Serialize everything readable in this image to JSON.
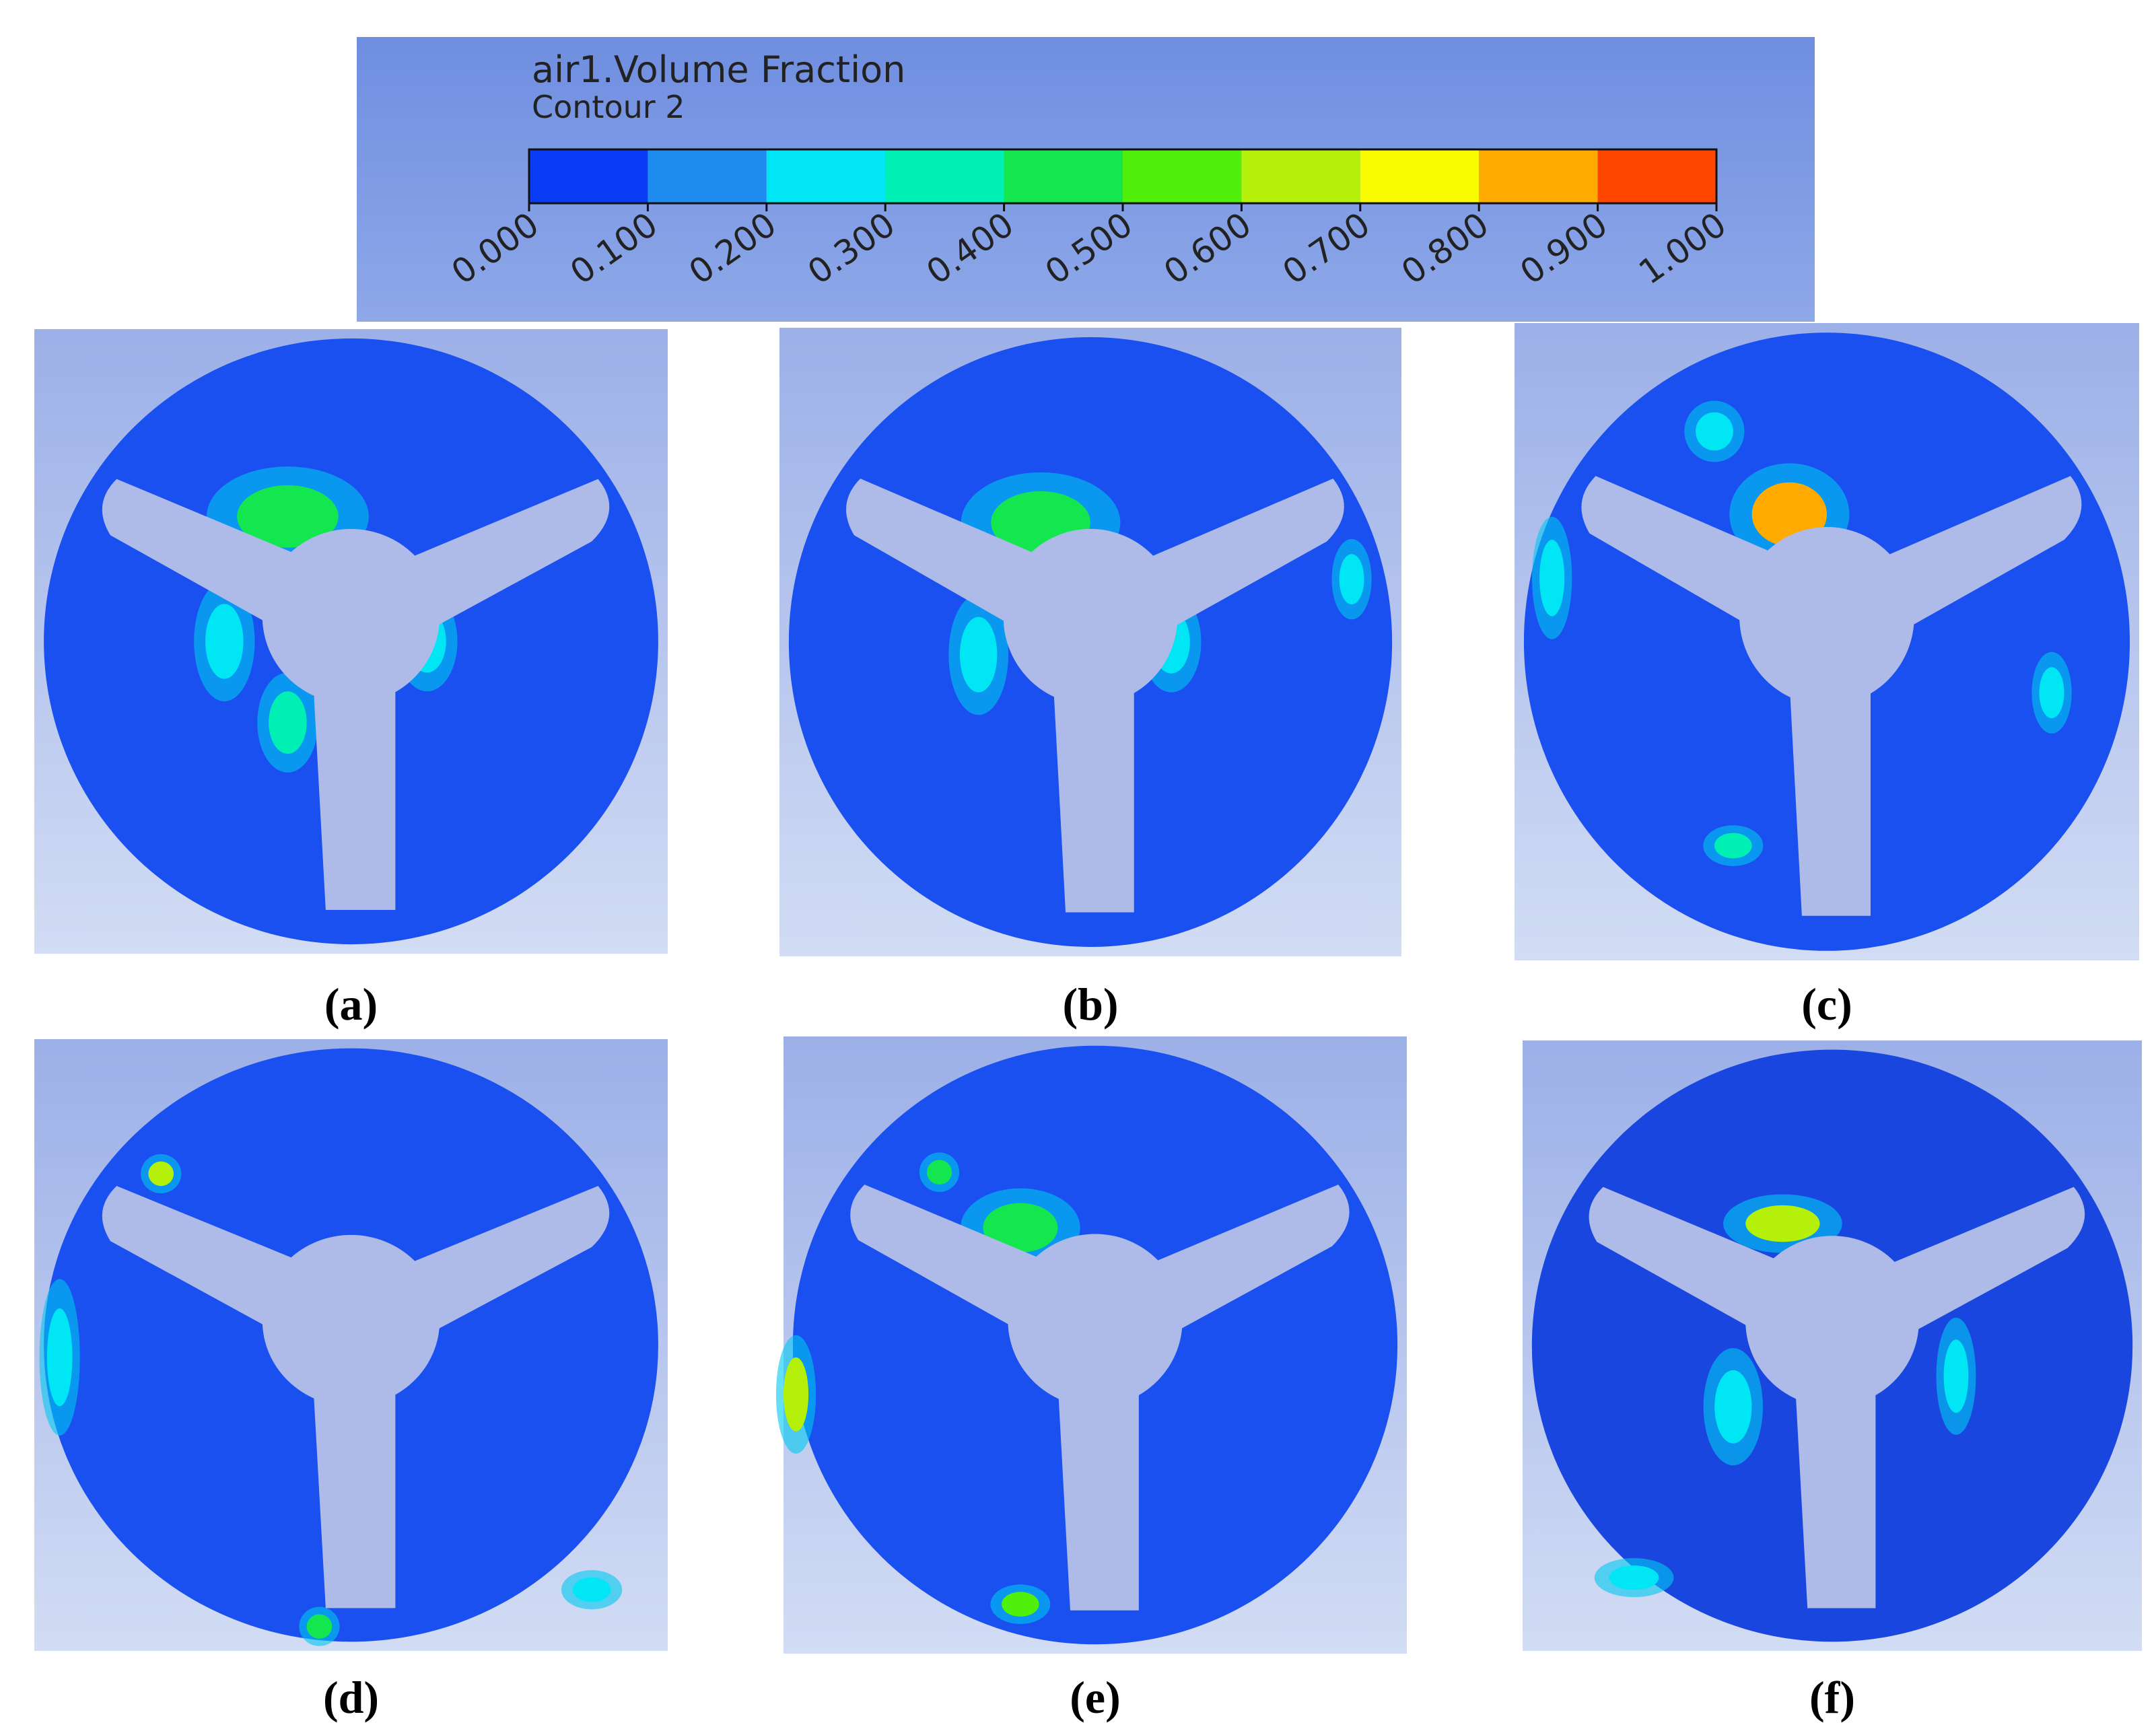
{
  "legend": {
    "title": "air1.Volume Fraction",
    "subtitle": "Contour 2",
    "colors": [
      "#0a3cf5",
      "#1e8cf0",
      "#00e6f5",
      "#00f0b4",
      "#14e650",
      "#50f00a",
      "#b4f00a",
      "#fafa00",
      "#ffaa00",
      "#ff4600"
    ],
    "ticks": [
      "0.000",
      "0.100",
      "0.200",
      "0.300",
      "0.400",
      "0.500",
      "0.600",
      "0.700",
      "0.800",
      "0.900",
      "1.000"
    ]
  },
  "panels": [
    {
      "label": "(a)"
    },
    {
      "label": "(b)"
    },
    {
      "label": "(c)"
    },
    {
      "label": "(d)"
    },
    {
      "label": "(e)"
    },
    {
      "label": "(f)"
    }
  ]
}
